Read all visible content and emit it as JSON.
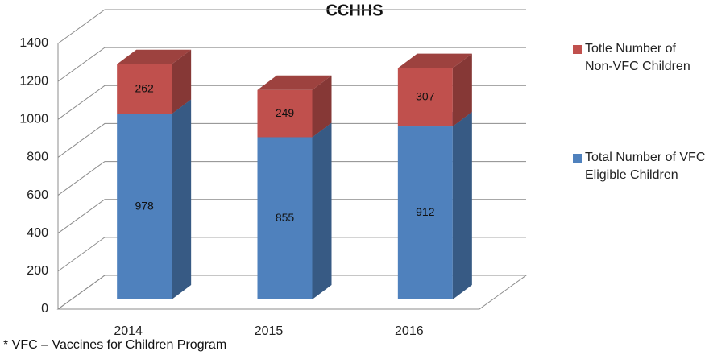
{
  "chart_data": {
    "type": "bar3d-stacked",
    "title": "CCHHS",
    "categories": [
      "2014",
      "2015",
      "2016"
    ],
    "series": [
      {
        "name": "Total Number of VFC Eligible Children",
        "color": "#4f81bd",
        "values": [
          978,
          855,
          912
        ]
      },
      {
        "name": "Totle Number of Non-VFC Children",
        "color": "#c0504d",
        "values": [
          262,
          249,
          307
        ]
      }
    ],
    "ylim": [
      0,
      1400
    ],
    "yticks": [
      0,
      200,
      400,
      600,
      800,
      1000,
      1200,
      1400
    ],
    "grid": true,
    "legend": "right",
    "footnote": "* VFC – Vaccines for Children Program"
  }
}
